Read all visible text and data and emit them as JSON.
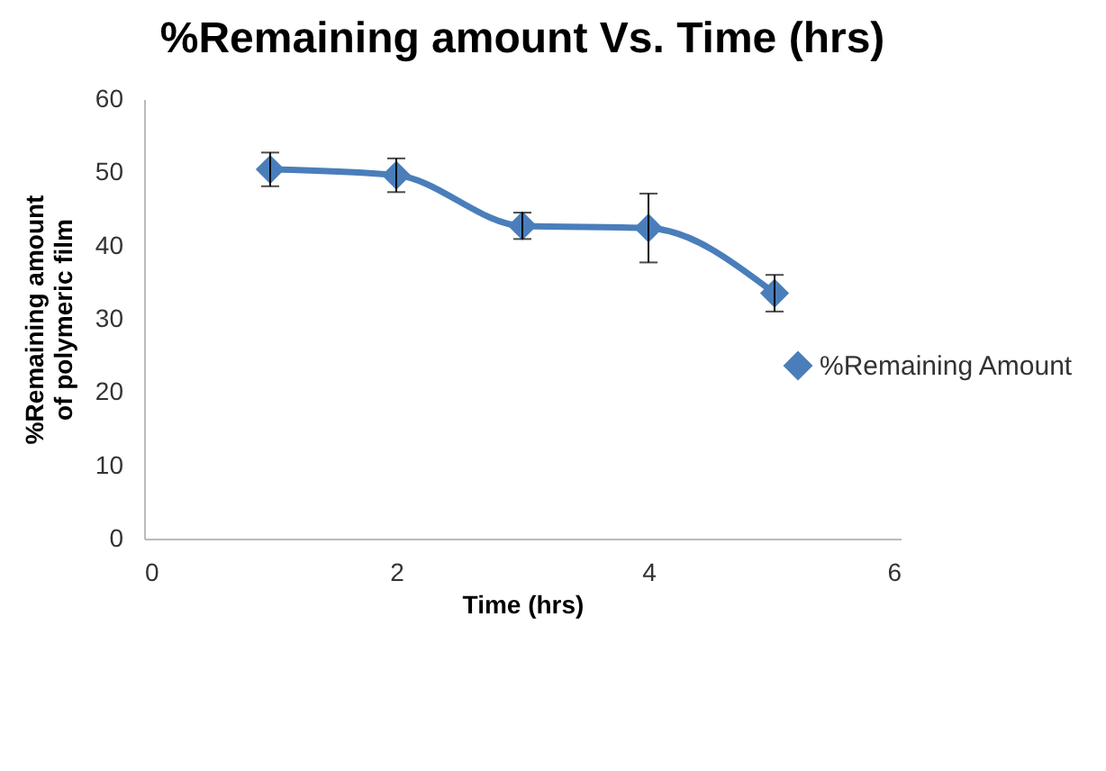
{
  "chart_data": {
    "type": "line",
    "title": "%Remaining amount Vs. Time (hrs)",
    "xlabel": "Time (hrs)",
    "ylabel": "%Remaining amount of polymeric film",
    "x": [
      1,
      2,
      3,
      4,
      5
    ],
    "series": [
      {
        "name": "%Remaining Amount",
        "color": "#4a7ebb",
        "values": [
          50.4,
          49.6,
          42.7,
          42.4,
          33.5
        ],
        "errors": [
          2.3,
          2.3,
          1.8,
          4.7,
          2.5
        ]
      }
    ],
    "xlim": [
      0,
      6
    ],
    "xticks": [
      0,
      2,
      4,
      6
    ],
    "ylim": [
      0,
      60
    ],
    "yticks": [
      0,
      10,
      20,
      30,
      40,
      50,
      60
    ],
    "grid": false,
    "legend": "right",
    "marker": "diamond",
    "line_style": "solid"
  }
}
